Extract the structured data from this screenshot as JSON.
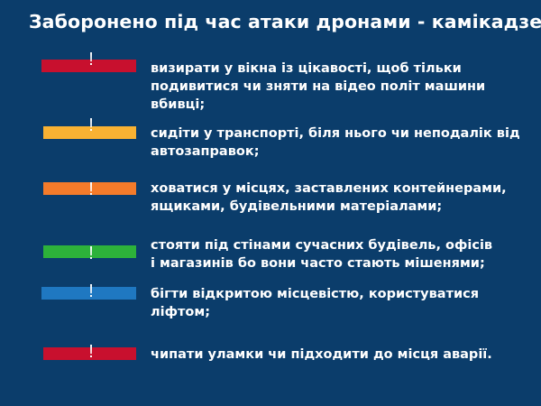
{
  "title": "Заборонено під час атаки дронами - камікадзе:",
  "rules": [
    {
      "mark": "!",
      "color": "#c8102e",
      "lines": [
        "визирати у вікна із цікавості, щоб тільки",
        "подивитися чи зняти на відео політ машини",
        "вбивці;"
      ]
    },
    {
      "mark": "!",
      "color": "#f9b233",
      "lines": [
        "сидіти у транспорті, біля нього чи неподалік від",
        "автозаправок;"
      ]
    },
    {
      "mark": "!",
      "color": "#f47b2a",
      "lines": [
        "ховатися у місцях, заставлених контейнерами,",
        "ящиками, будівельними матеріалами;"
      ]
    },
    {
      "mark": "!",
      "color": "#2db23a",
      "lines": [
        "стояти під стінами сучасних будівель, офісів",
        "і магазинів бо вони часто стають мішенями;"
      ]
    },
    {
      "mark": "!",
      "color": "#1f78c1",
      "lines": [
        "бігти відкритою місцевістю, користуватися",
        "ліфтом;"
      ]
    },
    {
      "mark": "!",
      "color": "#c8102e",
      "lines": [
        "чипати уламки чи підходити до місця аварії."
      ]
    }
  ]
}
